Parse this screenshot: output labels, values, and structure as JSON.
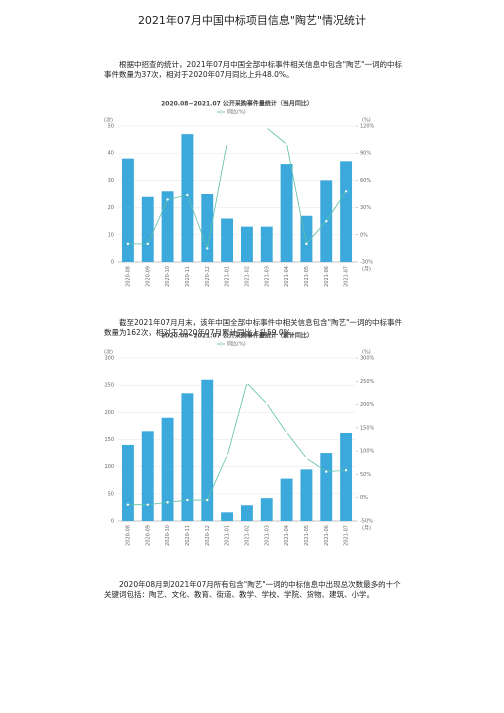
{
  "title": "2021年07月中国中标项目信息\"陶艺\"情况统计",
  "paragraphs": [
    "根据中招查的统计，2021年07月中国全部中标事件相关信息中包含\"陶艺\"一词的中标事件数量为37次，相对于2020年07月同比上升48.0%。",
    "截至2021年07月月末，该年中国全部中标事件中相关信息包含\"陶艺\"一词的中标事件数量为162次，相对于2020年07月累计同比上升59.0%。",
    "2020年08月到2021年07月所有包含\"陶艺\"一词的中标信息中出现总次数最多的十个关键词包括：陶艺、文化、教育、街道、教学、学校、学院、货物、建筑、小学。"
  ],
  "chart_data": [
    {
      "type": "bar",
      "title": "2020.08~2021.07 公开采购事件量统计（当月同比）",
      "y_label": "(次)",
      "y2_label": "(%)",
      "x_label": "(月)",
      "categories": [
        "2020-08",
        "2020-09",
        "2020-10",
        "2020-11",
        "2020-12",
        "2021-01",
        "2021-02",
        "2021-03",
        "2021-04",
        "2021-05",
        "2021-06",
        "2021-07"
      ],
      "series": [
        {
          "color": "#3ba9dc",
          "values": [
            38,
            24,
            26,
            47,
            25,
            16,
            13,
            13,
            36,
            17,
            30,
            37
          ]
        },
        {
          "type": "line",
          "name": "同比(%)",
          "color": "#5cc0a6",
          "axis": "y2",
          "values": [
            -10,
            -10,
            39,
            44,
            -15,
            100,
            null,
            118,
            100,
            -10,
            15,
            48
          ]
        }
      ],
      "ylim": [
        0,
        50
      ],
      "yticks": [
        0,
        10,
        20,
        30,
        40,
        50
      ],
      "y2lim": [
        -30,
        120
      ],
      "y2ticks": [
        {
          "value": -30,
          "label": "-30%"
        },
        {
          "value": 0,
          "label": "0%"
        },
        {
          "value": 30,
          "label": "30%"
        },
        {
          "value": 60,
          "label": "60%"
        },
        {
          "value": 90,
          "label": "90%"
        },
        {
          "value": 120,
          "label": "120%"
        }
      ],
      "grid": true,
      "legend": "top"
    },
    {
      "type": "bar",
      "title": "2020.08~2021.07 公开采购事件量统计（累计同比）",
      "y_label": "(次)",
      "y2_label": "(%)",
      "x_label": "(月)",
      "categories": [
        "2020-08",
        "2020-09",
        "2020-10",
        "2020-11",
        "2020-12",
        "2021-01",
        "2021-02",
        "2021-03",
        "2021-04",
        "2021-05",
        "2021-06",
        "2021-07"
      ],
      "series": [
        {
          "color": "#3ba9dc",
          "values": [
            140,
            165,
            190,
            235,
            260,
            16,
            29,
            42,
            78,
            95,
            125,
            162
          ]
        },
        {
          "type": "line",
          "name": "同比(%)",
          "color": "#5cc0a6",
          "axis": "y2",
          "values": [
            -15,
            -15,
            -10,
            -5,
            -5,
            90,
            246,
            202,
            140,
            85,
            56,
            59
          ]
        }
      ],
      "ylim": [
        0,
        300
      ],
      "yticks": [
        0,
        50,
        100,
        150,
        200,
        250,
        300
      ],
      "y2lim": [
        -50,
        300
      ],
      "y2ticks": [
        {
          "value": -50,
          "label": "-50%"
        },
        {
          "value": 0,
          "label": "0%"
        },
        {
          "value": 50,
          "label": "50%"
        },
        {
          "value": 100,
          "label": "100%"
        },
        {
          "value": 150,
          "label": "150%"
        },
        {
          "value": 200,
          "label": "200%"
        },
        {
          "value": 250,
          "label": "250%"
        },
        {
          "value": 300,
          "label": "300%"
        }
      ],
      "grid": true,
      "legend": "top"
    }
  ]
}
